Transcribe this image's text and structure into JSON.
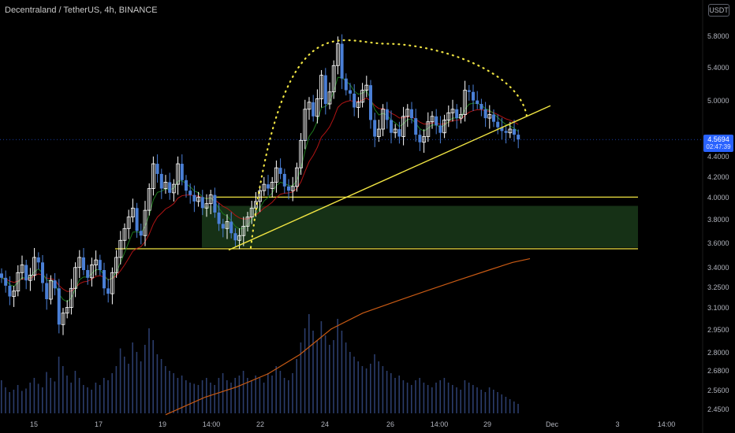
{
  "header": {
    "title": "Decentraland / TetherUS, 4h, BINANCE",
    "currency_button": "USDT"
  },
  "last_price": {
    "value": "4.5694",
    "countdown": "02:47:39"
  },
  "colors": {
    "background": "#000000",
    "candle_up": "#ffffff",
    "candle_down": "#4a7fd6",
    "volume": "#2b3d6b",
    "ema_fast": "#1e7a1e",
    "ema_mid": "#b01414",
    "ema_slow": "#c85a14",
    "drawing": "#f0e442",
    "zone_fill": "#1a3a1a",
    "price_tag": "#2962ff"
  },
  "chart_data": {
    "type": "candlestick",
    "y_axis": {
      "scale": "log",
      "range": [
        2.42,
        6.0
      ],
      "tick_labels": [
        "5.8000",
        "5.4000",
        "5.0000",
        "4.5694",
        "4.4000",
        "4.2000",
        "4.0000",
        "3.8000",
        "3.6000",
        "3.4000",
        "3.2500",
        "3.1000",
        "2.9500",
        "2.8000",
        "2.6800",
        "2.5600",
        "2.4500"
      ]
    },
    "x_axis": {
      "tick_labels": [
        "15",
        "17",
        "19",
        "14:00",
        "22",
        "24",
        "26",
        "14:00",
        "29",
        "Dec",
        "3",
        "14:00"
      ]
    },
    "close": [
      3.32,
      3.26,
      3.18,
      3.22,
      3.36,
      3.42,
      3.3,
      3.34,
      3.48,
      3.44,
      3.28,
      3.16,
      3.3,
      3.24,
      2.98,
      3.06,
      3.1,
      3.24,
      3.4,
      3.48,
      3.38,
      3.32,
      3.42,
      3.46,
      3.38,
      3.24,
      3.2,
      3.36,
      3.48,
      3.62,
      3.72,
      3.82,
      3.9,
      3.7,
      3.66,
      3.88,
      4.08,
      4.32,
      4.22,
      4.08,
      4.14,
      4.04,
      4.12,
      4.32,
      4.16,
      4.06,
      4.02,
      3.96,
      4.0,
      3.9,
      3.94,
      4.02,
      3.86,
      3.76,
      3.72,
      3.78,
      3.68,
      3.62,
      3.66,
      3.74,
      3.82,
      3.9,
      3.96,
      4.06,
      4.12,
      4.08,
      4.14,
      4.28,
      4.22,
      4.1,
      4.06,
      4.1,
      4.28,
      4.56,
      4.9,
      4.98,
      4.82,
      5.02,
      5.3,
      4.96,
      5.1,
      5.42,
      5.7,
      5.26,
      5.12,
      5.08,
      4.92,
      4.98,
      5.12,
      5.18,
      4.78,
      4.6,
      4.68,
      4.9,
      4.78,
      4.64,
      4.68,
      4.6,
      4.82,
      4.9,
      4.8,
      4.62,
      4.54,
      4.6,
      4.76,
      4.82,
      4.72,
      4.64,
      4.78,
      4.86,
      4.9,
      4.8,
      4.84,
      5.12,
      5.1,
      5.0,
      4.96,
      4.9,
      4.8,
      4.84,
      4.76,
      4.7,
      4.66,
      4.64,
      4.68,
      4.62,
      4.57
    ],
    "volume": [
      0.28,
      0.22,
      0.18,
      0.2,
      0.24,
      0.19,
      0.21,
      0.26,
      0.3,
      0.25,
      0.22,
      0.35,
      0.3,
      0.27,
      0.48,
      0.4,
      0.32,
      0.26,
      0.36,
      0.3,
      0.24,
      0.22,
      0.2,
      0.26,
      0.24,
      0.3,
      0.28,
      0.34,
      0.4,
      0.55,
      0.48,
      0.42,
      0.6,
      0.52,
      0.44,
      0.58,
      0.72,
      0.62,
      0.5,
      0.46,
      0.4,
      0.36,
      0.34,
      0.3,
      0.32,
      0.28,
      0.26,
      0.25,
      0.24,
      0.28,
      0.3,
      0.26,
      0.24,
      0.3,
      0.34,
      0.28,
      0.26,
      0.3,
      0.32,
      0.36,
      0.3,
      0.28,
      0.32,
      0.3,
      0.26,
      0.34,
      0.32,
      0.4,
      0.36,
      0.3,
      0.28,
      0.34,
      0.46,
      0.6,
      0.72,
      0.84,
      0.7,
      0.62,
      0.78,
      0.66,
      0.58,
      0.62,
      0.8,
      0.7,
      0.6,
      0.52,
      0.48,
      0.44,
      0.4,
      0.38,
      0.42,
      0.5,
      0.44,
      0.4,
      0.36,
      0.34,
      0.3,
      0.32,
      0.28,
      0.26,
      0.24,
      0.28,
      0.3,
      0.26,
      0.24,
      0.22,
      0.26,
      0.28,
      0.3,
      0.26,
      0.24,
      0.22,
      0.2,
      0.28,
      0.26,
      0.24,
      0.22,
      0.2,
      0.18,
      0.22,
      0.2,
      0.18,
      0.16,
      0.14,
      0.12,
      0.1,
      0.08
    ],
    "ema_slow": [
      [
        210,
        2.42
      ],
      [
        260,
        2.52
      ],
      [
        300,
        2.58
      ],
      [
        340,
        2.66
      ],
      [
        380,
        2.78
      ],
      [
        420,
        2.95
      ],
      [
        460,
        3.06
      ],
      [
        500,
        3.14
      ],
      [
        540,
        3.22
      ],
      [
        580,
        3.3
      ],
      [
        620,
        3.38
      ],
      [
        650,
        3.44
      ],
      [
        672,
        3.47
      ]
    ],
    "support_level": 3.55,
    "resistance_level": 4.0,
    "zone_range": [
      3.56,
      3.92
    ],
    "trendline": [
      [
        290,
        3.54
      ],
      [
        698,
        4.94
      ]
    ],
    "arc": {
      "start": [
        318,
        3.56
      ],
      "peak": [
        490,
        5.7
      ],
      "end": [
        668,
        4.82
      ]
    }
  }
}
